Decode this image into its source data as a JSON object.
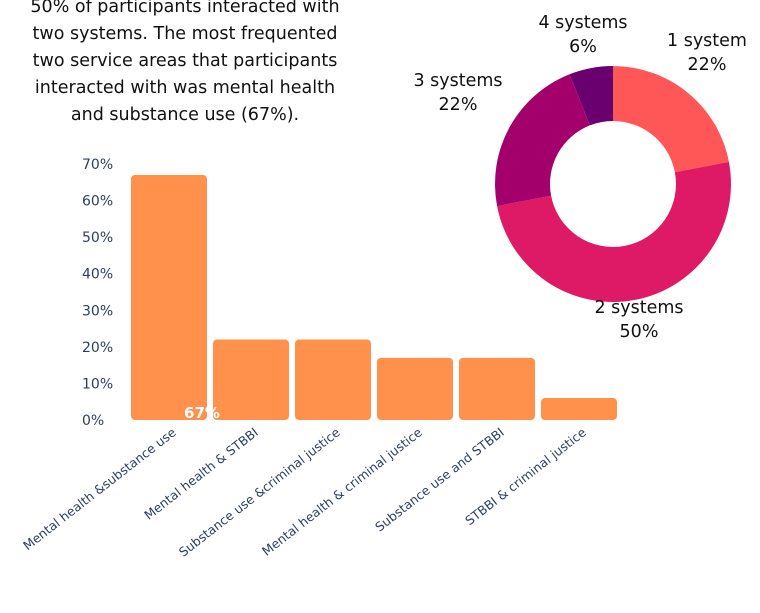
{
  "intro": {
    "lines": [
      "50% of participants interacted with",
      "two systems. The most frequented",
      "two service areas that participants",
      "interacted with was mental health",
      "and substance use (67%)."
    ]
  },
  "chart_data": [
    {
      "type": "bar",
      "categories": [
        "Mental health &substance use",
        "Mental health & STBBI",
        "Substance use &criminal justice",
        "Mental health & criminal justice",
        "Substance use and STBBI",
        "STBBI & criminal justice"
      ],
      "values": [
        67,
        22,
        22,
        17,
        17,
        6
      ],
      "value_unit": "%",
      "ylim": [
        0,
        70
      ],
      "yticks": [
        "0%",
        "10%",
        "20%",
        "30%",
        "40%",
        "50%",
        "60%",
        "70%"
      ],
      "data_labels": [
        "67%"
      ],
      "bar_color": "#ff914d",
      "grid": false
    },
    {
      "type": "pie",
      "donut": true,
      "slices": [
        {
          "label": "1 system",
          "value": 22,
          "value_label": "22%",
          "color": "#ff5757"
        },
        {
          "label": "2 systems",
          "value": 50,
          "value_label": "50%",
          "color": "#de1a66"
        },
        {
          "label": "3 systems",
          "value": 22,
          "value_label": "22%",
          "color": "#a3006b"
        },
        {
          "label": "4 systems",
          "value": 6,
          "value_label": "6%",
          "color": "#6a006f"
        }
      ]
    }
  ]
}
